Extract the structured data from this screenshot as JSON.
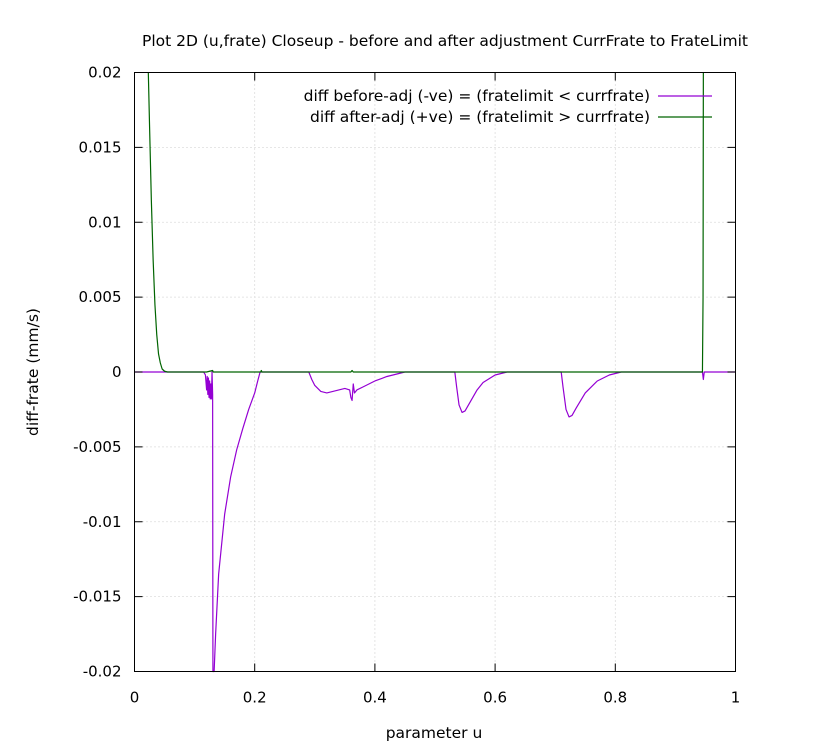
{
  "chart_data": {
    "type": "line",
    "title": "Plot 2D (u,frate) Closeup - before and after adjustment CurrFrate to FrateLimit",
    "xlabel": "parameter u",
    "ylabel": "diff-frate (mm/s)",
    "xlim": [
      0,
      1
    ],
    "ylim": [
      -0.02,
      0.02
    ],
    "x_ticks": [
      0,
      0.2,
      0.4,
      0.6,
      0.8,
      1
    ],
    "x_tick_labels": [
      "0",
      "0.2",
      "0.4",
      "0.6",
      "0.8",
      "1"
    ],
    "y_ticks": [
      0.02,
      0.015,
      0.01,
      0.005,
      0,
      -0.005,
      -0.01,
      -0.015,
      -0.02
    ],
    "y_tick_labels": [
      "0.02",
      "0.015",
      "0.01",
      "0.005",
      "0",
      "-0.005",
      "-0.01",
      "-0.015",
      "-0.02"
    ],
    "grid": true,
    "legend_position": "top-right",
    "series": [
      {
        "name": "diff before-adj (-ve) = (fratelimit < currfrate)",
        "color": "#9400d3",
        "points": [
          [
            0,
            0
          ],
          [
            0.115,
            0
          ],
          [
            0.118,
            -0.0002
          ],
          [
            0.12,
            -0.0012
          ],
          [
            0.121,
            -0.0003
          ],
          [
            0.122,
            -0.0015
          ],
          [
            0.123,
            -0.0004
          ],
          [
            0.124,
            -0.0017
          ],
          [
            0.125,
            -0.0006
          ],
          [
            0.126,
            -0.0018
          ],
          [
            0.127,
            -0.0008
          ],
          [
            0.128,
            -0.0018
          ],
          [
            0.129,
            0
          ],
          [
            0.13,
            -0.0015
          ],
          [
            0.1305,
            -0.02
          ],
          [
            0.1325,
            -0.02
          ],
          [
            0.135,
            -0.0175
          ],
          [
            0.14,
            -0.0135
          ],
          [
            0.15,
            -0.0095
          ],
          [
            0.16,
            -0.007
          ],
          [
            0.17,
            -0.0052
          ],
          [
            0.18,
            -0.0038
          ],
          [
            0.19,
            -0.0025
          ],
          [
            0.2,
            -0.0014
          ],
          [
            0.205,
            -0.0006
          ],
          [
            0.209,
            0
          ],
          [
            0.29,
            0
          ],
          [
            0.295,
            -0.0005
          ],
          [
            0.3,
            -0.0009
          ],
          [
            0.31,
            -0.0013
          ],
          [
            0.32,
            -0.0014
          ],
          [
            0.33,
            -0.0013
          ],
          [
            0.34,
            -0.0012
          ],
          [
            0.35,
            -0.0011
          ],
          [
            0.358,
            -0.0012
          ],
          [
            0.36,
            -0.0017
          ],
          [
            0.362,
            -0.0019
          ],
          [
            0.364,
            -0.0008
          ],
          [
            0.366,
            -0.0014
          ],
          [
            0.37,
            -0.0012
          ],
          [
            0.38,
            -0.001
          ],
          [
            0.39,
            -0.0008
          ],
          [
            0.4,
            -0.0006
          ],
          [
            0.42,
            -0.0003
          ],
          [
            0.44,
            -0.0001
          ],
          [
            0.45,
            0
          ],
          [
            0.533,
            0
          ],
          [
            0.536,
            -0.001
          ],
          [
            0.54,
            -0.0022
          ],
          [
            0.545,
            -0.0027
          ],
          [
            0.55,
            -0.0026
          ],
          [
            0.56,
            -0.0019
          ],
          [
            0.57,
            -0.0012
          ],
          [
            0.58,
            -0.0007
          ],
          [
            0.6,
            -0.0002
          ],
          [
            0.62,
            0
          ],
          [
            0.71,
            0
          ],
          [
            0.713,
            -0.001
          ],
          [
            0.718,
            -0.0025
          ],
          [
            0.723,
            -0.003
          ],
          [
            0.728,
            -0.0029
          ],
          [
            0.735,
            -0.0024
          ],
          [
            0.75,
            -0.0014
          ],
          [
            0.77,
            -0.0006
          ],
          [
            0.79,
            -0.0002
          ],
          [
            0.81,
            0
          ],
          [
            0.945,
            0
          ],
          [
            0.9465,
            -0.0005
          ],
          [
            0.948,
            0
          ],
          [
            1,
            0
          ]
        ]
      },
      {
        "name": "diff after-adj (+ve) = (fratelimit > currfrate)",
        "color": "#006400",
        "points": [
          [
            0.023,
            0.02
          ],
          [
            0.025,
            0.0165
          ],
          [
            0.028,
            0.0115
          ],
          [
            0.031,
            0.0075
          ],
          [
            0.034,
            0.0045
          ],
          [
            0.037,
            0.0025
          ],
          [
            0.04,
            0.0012
          ],
          [
            0.043,
            0.0006
          ],
          [
            0.046,
            0.0002
          ],
          [
            0.05,
            5e-05
          ],
          [
            0.055,
            0
          ],
          [
            0.1,
            0
          ],
          [
            0.12,
            0
          ],
          [
            0.13,
            0.0001
          ],
          [
            0.131,
            0
          ],
          [
            0.21,
            0
          ],
          [
            0.211,
            0.0001
          ],
          [
            0.212,
            0
          ],
          [
            0.36,
            0
          ],
          [
            0.362,
            0.0001
          ],
          [
            0.364,
            0
          ],
          [
            0.6,
            0
          ],
          [
            0.9,
            0
          ],
          [
            0.945,
            0
          ],
          [
            0.946,
            0.005
          ],
          [
            0.9465,
            0.02
          ]
        ]
      }
    ]
  }
}
